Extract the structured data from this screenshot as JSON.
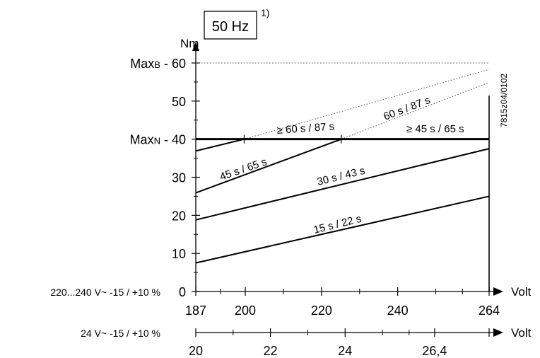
{
  "chart_data": {
    "type": "line",
    "title": "50 Hz",
    "title_footnote": "1)",
    "ylabel": "Nm",
    "xlabel": "Volt",
    "figure_id": "7815z04/0102",
    "ylim": [
      0,
      60
    ],
    "xlim": [
      187,
      264
    ],
    "y_ticks": [
      {
        "value": 0,
        "label": "0"
      },
      {
        "value": 10,
        "label": "10"
      },
      {
        "value": 20,
        "label": "20"
      },
      {
        "value": 30,
        "label": "30"
      },
      {
        "value": 40,
        "label": "40"
      },
      {
        "value": 50,
        "label": "50"
      },
      {
        "value": 60,
        "label": "60"
      }
    ],
    "y_limit_labels": [
      {
        "value": 60,
        "prefix": "Max",
        "sub": "B",
        "suffix": " - 60"
      },
      {
        "value": 40,
        "prefix": "Max",
        "sub": "N",
        "suffix": " - 40"
      }
    ],
    "x_axes": [
      {
        "name": "220...240 V~ -15 / +10 %",
        "unit": "Volt",
        "ticks": [
          {
            "value": 187,
            "label": "187"
          },
          {
            "value": 200,
            "label": "200"
          },
          {
            "value": 220,
            "label": "220"
          },
          {
            "value": 240,
            "label": "240"
          },
          {
            "value": 264,
            "label": "264"
          }
        ]
      },
      {
        "name": "24 V~ -15 / +10 %",
        "unit": "Volt",
        "ticks": [
          {
            "value": 20,
            "label": "20",
            "pos": 187
          },
          {
            "value": 22,
            "label": "22",
            "pos": 206.6
          },
          {
            "value": 24,
            "label": "24",
            "pos": 226.2
          },
          {
            "value": 26.4,
            "label": "26,4",
            "pos": 249.7
          }
        ]
      }
    ],
    "series": [
      {
        "name": "15 s / 22 s",
        "x": [
          187,
          264
        ],
        "y": [
          7.5,
          25
        ],
        "style": "solid"
      },
      {
        "name": "30 s / 43 s",
        "x": [
          187,
          264
        ],
        "y": [
          18.8,
          37.5
        ],
        "style": "solid"
      },
      {
        "name": "45 s / 65 s",
        "x": [
          187,
          225.2
        ],
        "y": [
          25.9,
          40
        ],
        "style": "solid"
      },
      {
        "name": "45 s / 65 s",
        "x": [
          225.2,
          264
        ],
        "y": [
          40,
          54.9
        ],
        "style": "dotted"
      },
      {
        "name": "60 s / 87 s",
        "x": [
          187,
          199.7
        ],
        "y": [
          36.9,
          40
        ],
        "style": "solid"
      },
      {
        "name": "60 s / 87 s",
        "x": [
          199.7,
          264
        ],
        "y": [
          40,
          58.3
        ],
        "style": "dotted"
      },
      {
        "name": "Max N",
        "x": [
          187,
          264
        ],
        "y": [
          40,
          40
        ],
        "style": "bold"
      },
      {
        "name": "Max B",
        "x": [
          187,
          264
        ],
        "y": [
          60,
          60
        ],
        "style": "dotted"
      }
    ],
    "annotations": [
      {
        "text": "≥ 60 s / 87 s"
      },
      {
        "text": "60 s / 87 s"
      },
      {
        "text": "≥ 45 s / 65 s"
      },
      {
        "text": "45 s / 65 s"
      },
      {
        "text": "30 s / 43 s"
      },
      {
        "text": "15 s / 22 s"
      }
    ],
    "grid": false,
    "legend": "none"
  }
}
